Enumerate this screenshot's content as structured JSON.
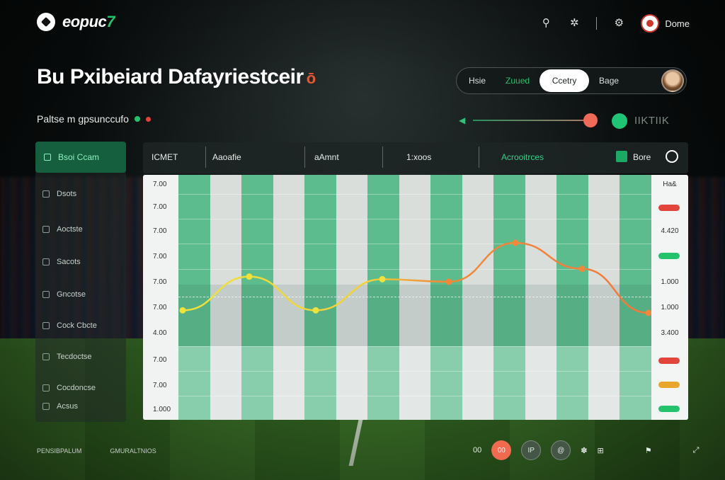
{
  "app": {
    "logo_text": "eopuc",
    "logo_accent": "7"
  },
  "header": {
    "user_label": "Dome",
    "icons": [
      "search-icon",
      "share-icon",
      "settings-icon",
      "avatar"
    ]
  },
  "title": "Bu Pxibeiard Dafayriestceir",
  "title_mark": "ō",
  "subtitle": "Paltse m gpsunccufo",
  "tabs": [
    {
      "label": "Hsie"
    },
    {
      "label": "Zuued"
    },
    {
      "label": "Ccetry"
    },
    {
      "label": "Bage"
    }
  ],
  "slider": {
    "label": "IIKTIIK",
    "value": 0.78
  },
  "sidebar": {
    "active_label": "Bsoi Ccam",
    "items": [
      {
        "label": "Dsots"
      },
      {
        "label": "Aoctste"
      },
      {
        "label": "Sacots"
      },
      {
        "label": "Gncotse"
      },
      {
        "label": "Cock Cbcte"
      },
      {
        "label": "Tecdoctse"
      },
      {
        "label": "Cocdoncse"
      },
      {
        "label": "Acsus"
      }
    ]
  },
  "table": {
    "headers": [
      "ICMET",
      "Aaoafie",
      "aAmnt",
      "1:xoos",
      "Acrooitrces",
      "Bore"
    ],
    "y_labels": [
      "7.00",
      "7.00",
      "7.00",
      "7.00",
      "7.00",
      "7.00",
      "4.00",
      "7.00",
      "7.00",
      "1.000"
    ],
    "right_header": "Ha&",
    "right_values": [
      "",
      "",
      "4.420",
      "",
      "1.000",
      "1.000",
      "3.400",
      "",
      "",
      ""
    ],
    "right_pills": [
      "#e0443a",
      "#25c26e",
      "#e0443a",
      "#e9a62a",
      "#25c26e"
    ]
  },
  "chart_data": {
    "type": "line",
    "x": [
      1,
      2,
      3,
      4,
      5,
      6,
      7,
      8
    ],
    "series": [
      {
        "values": [
          4.3,
          4.95,
          4.3,
          4.9,
          4.85,
          5.6,
          5.1,
          4.25
        ]
      }
    ],
    "ylim": [
      3.5,
      6.5
    ]
  },
  "bottom": {
    "left_items": [
      "PENSIBPALUM",
      "GMURALTNIOS"
    ],
    "controls": [
      "00",
      "00",
      "IP",
      "@"
    ]
  },
  "colors": {
    "accent": "#25c26e",
    "danger": "#ef6a57",
    "line_start": "#f0e23a",
    "line_end": "#f08a3a"
  }
}
